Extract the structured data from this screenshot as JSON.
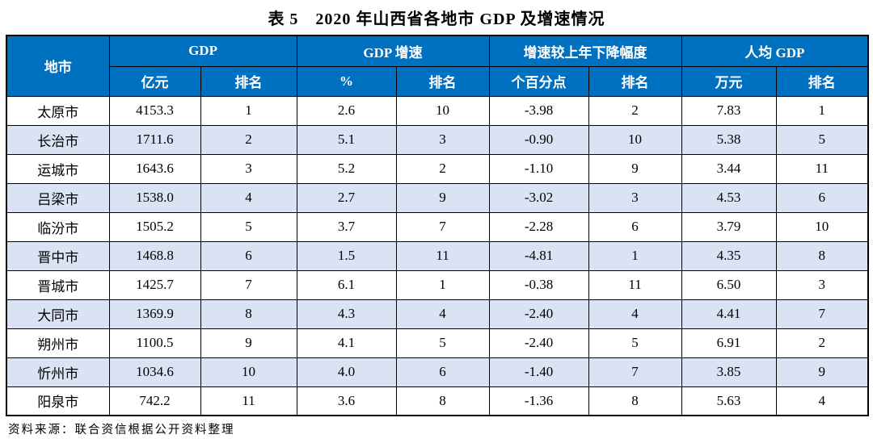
{
  "title": "表 5　2020 年山西省各地市 GDP 及增速情况",
  "source_note": "资料来源：联合资信根据公开资料整理",
  "colors": {
    "header_bg": "#0070C0",
    "header_text": "#FFFFFF",
    "row_alt_bg": "#DAE3F3",
    "row_bg": "#FFFFFF",
    "border": "#000000"
  },
  "table": {
    "corner_header": "地市",
    "groups": [
      {
        "label": "GDP",
        "sub": [
          "亿元",
          "排名"
        ]
      },
      {
        "label": "GDP 增速",
        "sub": [
          "%",
          "排名"
        ]
      },
      {
        "label": "增速较上年下降幅度",
        "sub": [
          "个百分点",
          "排名"
        ]
      },
      {
        "label": "人均 GDP",
        "sub": [
          "万元",
          "排名"
        ]
      }
    ],
    "rows": [
      {
        "city": "太原市",
        "cells": [
          "4153.3",
          "1",
          "2.6",
          "10",
          "-3.98",
          "2",
          "7.83",
          "1"
        ]
      },
      {
        "city": "长治市",
        "cells": [
          "1711.6",
          "2",
          "5.1",
          "3",
          "-0.90",
          "10",
          "5.38",
          "5"
        ]
      },
      {
        "city": "运城市",
        "cells": [
          "1643.6",
          "3",
          "5.2",
          "2",
          "-1.10",
          "9",
          "3.44",
          "11"
        ]
      },
      {
        "city": "吕梁市",
        "cells": [
          "1538.0",
          "4",
          "2.7",
          "9",
          "-3.02",
          "3",
          "4.53",
          "6"
        ]
      },
      {
        "city": "临汾市",
        "cells": [
          "1505.2",
          "5",
          "3.7",
          "7",
          "-2.28",
          "6",
          "3.79",
          "10"
        ]
      },
      {
        "city": "晋中市",
        "cells": [
          "1468.8",
          "6",
          "1.5",
          "11",
          "-4.81",
          "1",
          "4.35",
          "8"
        ]
      },
      {
        "city": "晋城市",
        "cells": [
          "1425.7",
          "7",
          "6.1",
          "1",
          "-0.38",
          "11",
          "6.50",
          "3"
        ]
      },
      {
        "city": "大同市",
        "cells": [
          "1369.9",
          "8",
          "4.3",
          "4",
          "-2.40",
          "4",
          "4.41",
          "7"
        ]
      },
      {
        "city": "朔州市",
        "cells": [
          "1100.5",
          "9",
          "4.1",
          "5",
          "-2.40",
          "5",
          "6.91",
          "2"
        ]
      },
      {
        "city": "忻州市",
        "cells": [
          "1034.6",
          "10",
          "4.0",
          "6",
          "-1.40",
          "7",
          "3.85",
          "9"
        ]
      },
      {
        "city": "阳泉市",
        "cells": [
          "742.2",
          "11",
          "3.6",
          "8",
          "-1.36",
          "8",
          "5.63",
          "4"
        ]
      }
    ]
  }
}
